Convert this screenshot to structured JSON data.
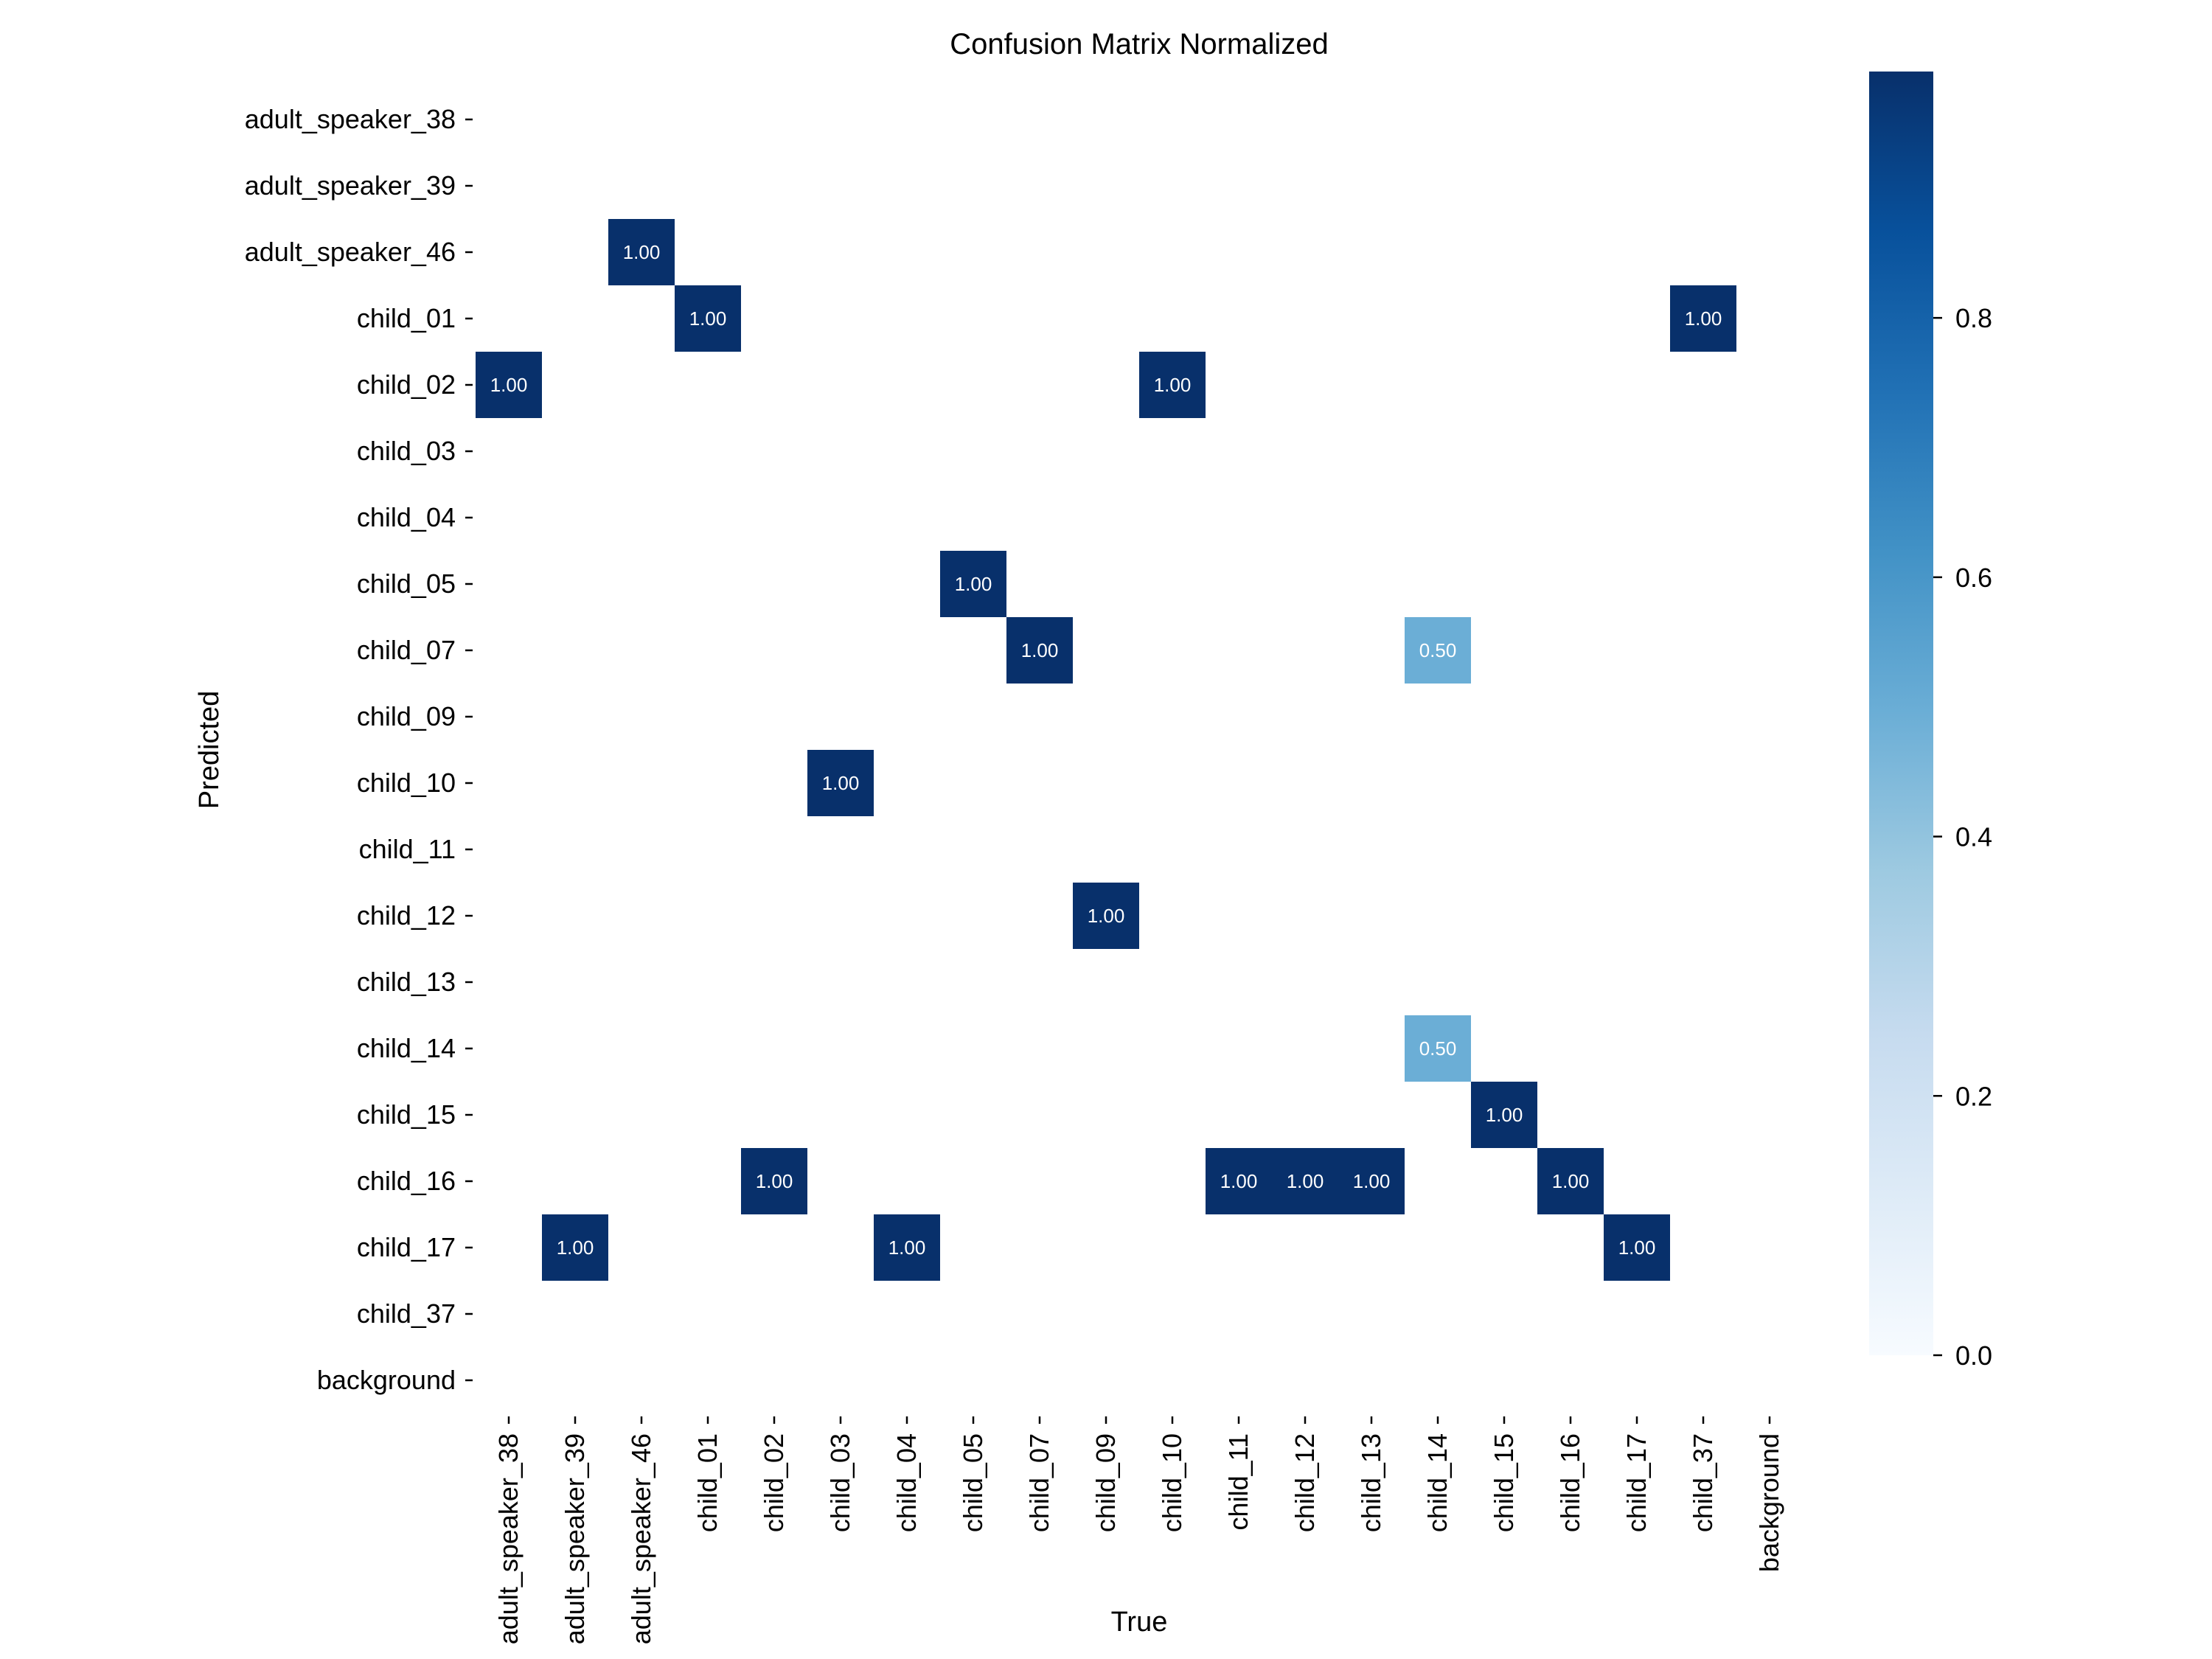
{
  "chart_data": {
    "type": "heatmap",
    "title": "Confusion Matrix Normalized",
    "xlabel": "True",
    "ylabel": "Predicted",
    "x_categories": [
      "adult_speaker_38",
      "adult_speaker_39",
      "adult_speaker_46",
      "child_01",
      "child_02",
      "child_03",
      "child_04",
      "child_05",
      "child_07",
      "child_09",
      "child_10",
      "child_11",
      "child_12",
      "child_13",
      "child_14",
      "child_15",
      "child_16",
      "child_17",
      "child_37",
      "background"
    ],
    "y_categories": [
      "adult_speaker_38",
      "adult_speaker_39",
      "adult_speaker_46",
      "child_01",
      "child_02",
      "child_03",
      "child_04",
      "child_05",
      "child_07",
      "child_09",
      "child_10",
      "child_11",
      "child_12",
      "child_13",
      "child_14",
      "child_15",
      "child_16",
      "child_17",
      "child_37",
      "background"
    ],
    "cells": [
      {
        "predicted": "adult_speaker_46",
        "true": "adult_speaker_46",
        "value": 1.0,
        "label": "1.00"
      },
      {
        "predicted": "child_01",
        "true": "child_01",
        "value": 1.0,
        "label": "1.00"
      },
      {
        "predicted": "child_01",
        "true": "child_37",
        "value": 1.0,
        "label": "1.00"
      },
      {
        "predicted": "child_02",
        "true": "adult_speaker_38",
        "value": 1.0,
        "label": "1.00"
      },
      {
        "predicted": "child_02",
        "true": "child_10",
        "value": 1.0,
        "label": "1.00"
      },
      {
        "predicted": "child_05",
        "true": "child_05",
        "value": 1.0,
        "label": "1.00"
      },
      {
        "predicted": "child_07",
        "true": "child_07",
        "value": 1.0,
        "label": "1.00"
      },
      {
        "predicted": "child_07",
        "true": "child_14",
        "value": 0.5,
        "label": "0.50"
      },
      {
        "predicted": "child_10",
        "true": "child_03",
        "value": 1.0,
        "label": "1.00"
      },
      {
        "predicted": "child_12",
        "true": "child_09",
        "value": 1.0,
        "label": "1.00"
      },
      {
        "predicted": "child_14",
        "true": "child_14",
        "value": 0.5,
        "label": "0.50"
      },
      {
        "predicted": "child_15",
        "true": "child_15",
        "value": 1.0,
        "label": "1.00"
      },
      {
        "predicted": "child_16",
        "true": "child_02",
        "value": 1.0,
        "label": "1.00"
      },
      {
        "predicted": "child_16",
        "true": "child_11",
        "value": 1.0,
        "label": "1.00"
      },
      {
        "predicted": "child_16",
        "true": "child_12",
        "value": 1.0,
        "label": "1.00"
      },
      {
        "predicted": "child_16",
        "true": "child_13",
        "value": 1.0,
        "label": "1.00"
      },
      {
        "predicted": "child_16",
        "true": "child_16",
        "value": 1.0,
        "label": "1.00"
      },
      {
        "predicted": "child_17",
        "true": "adult_speaker_39",
        "value": 1.0,
        "label": "1.00"
      },
      {
        "predicted": "child_17",
        "true": "child_04",
        "value": 1.0,
        "label": "1.00"
      },
      {
        "predicted": "child_17",
        "true": "child_17",
        "value": 1.0,
        "label": "1.00"
      }
    ],
    "colorbar": {
      "range": [
        0,
        1
      ],
      "ticks": [
        0.0,
        0.2,
        0.4,
        0.6,
        0.8
      ],
      "tick_labels": [
        "0.0",
        "0.2",
        "0.4",
        "0.6",
        "0.8"
      ],
      "colormap": "Blues",
      "colors": [
        "#f7fbff",
        "#deebf7",
        "#c6dbef",
        "#9ecae1",
        "#6baed6",
        "#4292c6",
        "#2171b5",
        "#08519c",
        "#08306b"
      ]
    },
    "grid": false,
    "legend": "colorbar-right"
  }
}
